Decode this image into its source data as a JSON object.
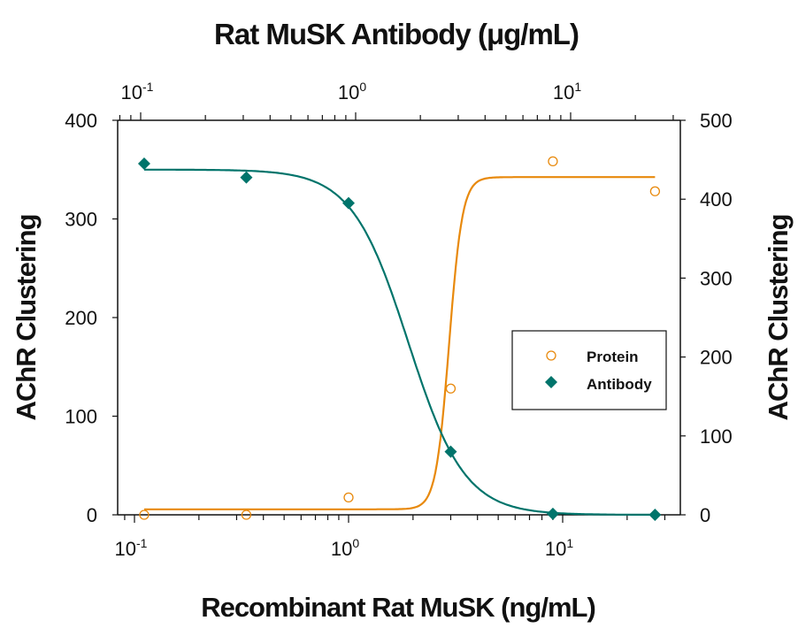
{
  "chart_data": {
    "type": "scatter",
    "title": "Rat MuSK Antibody (μg/mL)",
    "xlabel": "Recombinant Rat MuSK (ng/mL)",
    "x2label": "Rat MuSK Antibody (μg/mL)",
    "ylabel": "AChR Clustering",
    "y2label": "AChR Clustering",
    "xscale": "log",
    "xlim": [
      0.075,
      34
    ],
    "x2lim": [
      0.072,
      33
    ],
    "ylim": [
      0,
      400
    ],
    "y2lim": [
      0,
      500
    ],
    "x_ticks": [
      {
        "label": "10",
        "exp": "-1",
        "value": 0.1
      },
      {
        "label": "10",
        "exp": "0",
        "value": 1
      },
      {
        "label": "10",
        "exp": "1",
        "value": 10
      }
    ],
    "x2_ticks": [
      {
        "label": "10",
        "exp": "-1",
        "value": 0.1
      },
      {
        "label": "10",
        "exp": "0",
        "value": 1
      },
      {
        "label": "10",
        "exp": "1",
        "value": 10
      }
    ],
    "y_ticks": [
      0,
      100,
      200,
      300,
      400
    ],
    "y2_ticks": [
      0,
      100,
      200,
      300,
      400,
      500
    ],
    "grid": false,
    "legend_position": "inside-right",
    "series": [
      {
        "name": "Protein",
        "axis": "bottom-right",
        "marker": "open-circle",
        "color": "#E8890C",
        "x": [
          0.111,
          0.333,
          1,
          3,
          9,
          27
        ],
        "y": [
          0,
          0,
          22,
          160,
          448,
          410
        ],
        "fit": {
          "bottom": 7,
          "top": 428,
          "ec50": 2.95,
          "hill": 14
        }
      },
      {
        "name": "Antibody",
        "axis": "bottom-left",
        "marker": "filled-diamond",
        "color": "#00746B",
        "x": [
          0.111,
          0.333,
          1,
          3,
          9,
          27
        ],
        "y": [
          356,
          342,
          316,
          64,
          1,
          0
        ],
        "fit": {
          "bottom": 0,
          "top": 350,
          "ec50": 1.9,
          "hill": 3.3
        }
      }
    ]
  },
  "legend": {
    "items": [
      {
        "label": "Protein"
      },
      {
        "label": "Antibody"
      }
    ]
  }
}
